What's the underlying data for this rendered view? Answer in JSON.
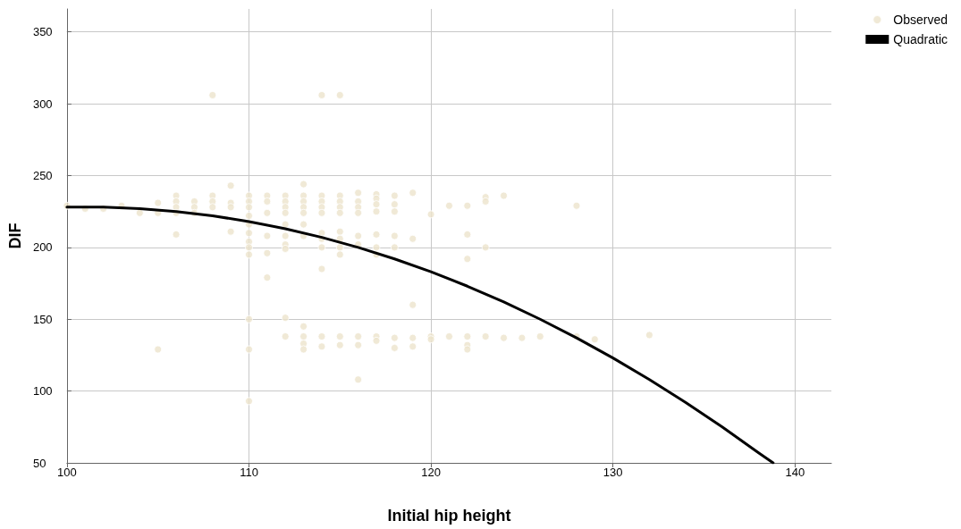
{
  "chart_data": {
    "type": "scatter",
    "xlabel": "Initial hip height",
    "ylabel": "DIF",
    "xlim": [
      100,
      142
    ],
    "xticks": [
      100,
      110,
      120,
      130,
      140
    ],
    "ylim": [
      50,
      366
    ],
    "yticks": [
      50,
      100,
      150,
      200,
      250,
      300,
      350
    ],
    "grid": true,
    "legend": "top right",
    "marker": "circle",
    "series": [
      {
        "name": "Observed",
        "color": "#ece3cc",
        "x": [
          100,
          101,
          102,
          103,
          104,
          105,
          105,
          105,
          106,
          106,
          106,
          106,
          106,
          107,
          107,
          107,
          108,
          108,
          108,
          108,
          109,
          109,
          109,
          109,
          110,
          110,
          110,
          110,
          110,
          110,
          110,
          110,
          110,
          110,
          110,
          110,
          111,
          111,
          111,
          111,
          111,
          111,
          112,
          112,
          112,
          112,
          112,
          112,
          112,
          112,
          112,
          112,
          113,
          113,
          113,
          113,
          113,
          113,
          113,
          113,
          113,
          113,
          113,
          114,
          114,
          114,
          114,
          114,
          114,
          114,
          114,
          114,
          114,
          114,
          115,
          115,
          115,
          115,
          115,
          115,
          115,
          115,
          115,
          115,
          115,
          116,
          116,
          116,
          116,
          116,
          116,
          116,
          116,
          116,
          117,
          117,
          117,
          117,
          117,
          117,
          117,
          117,
          117,
          118,
          118,
          118,
          118,
          118,
          118,
          118,
          119,
          119,
          119,
          119,
          119,
          120,
          120,
          120,
          121,
          121,
          122,
          122,
          122,
          122,
          122,
          122,
          123,
          123,
          123,
          123,
          124,
          124,
          125,
          126,
          128,
          128,
          129,
          132
        ],
        "values": [
          229,
          227,
          227,
          229,
          224,
          231,
          224,
          129,
          236,
          232,
          228,
          224,
          209,
          232,
          228,
          224,
          306,
          236,
          232,
          228,
          243,
          231,
          228,
          211,
          236,
          232,
          228,
          222,
          216,
          210,
          204,
          200,
          195,
          150,
          129,
          93,
          236,
          232,
          224,
          208,
          196,
          179,
          236,
          232,
          228,
          224,
          216,
          208,
          202,
          199,
          151,
          138,
          244,
          236,
          232,
          228,
          224,
          216,
          208,
          145,
          138,
          133,
          129,
          306,
          236,
          232,
          228,
          224,
          210,
          206,
          200,
          185,
          138,
          131,
          306,
          236,
          232,
          228,
          224,
          211,
          206,
          200,
          195,
          138,
          132,
          238,
          232,
          228,
          224,
          208,
          202,
          138,
          132,
          108,
          237,
          234,
          230,
          225,
          209,
          200,
          195,
          138,
          135,
          236,
          230,
          225,
          208,
          200,
          137,
          130,
          238,
          206,
          160,
          137,
          131,
          223,
          138,
          136,
          229,
          138,
          229,
          209,
          192,
          138,
          132,
          129,
          235,
          232,
          200,
          138,
          236,
          137,
          137,
          138,
          229,
          138,
          136,
          139
        ]
      },
      {
        "name": "Quadratic",
        "type": "line",
        "color": "#000000",
        "marker": "none",
        "line_style": "solid",
        "x": [
          100,
          102,
          104,
          106,
          108,
          110,
          112,
          114,
          116,
          118,
          120,
          122,
          124,
          126,
          128,
          130,
          132,
          134,
          136,
          138,
          138.8
        ],
        "values": [
          228,
          228,
          227,
          225,
          222,
          218,
          213,
          207,
          200,
          192,
          183,
          173,
          162,
          150,
          137,
          123,
          108,
          92,
          75,
          57,
          50
        ]
      }
    ]
  }
}
